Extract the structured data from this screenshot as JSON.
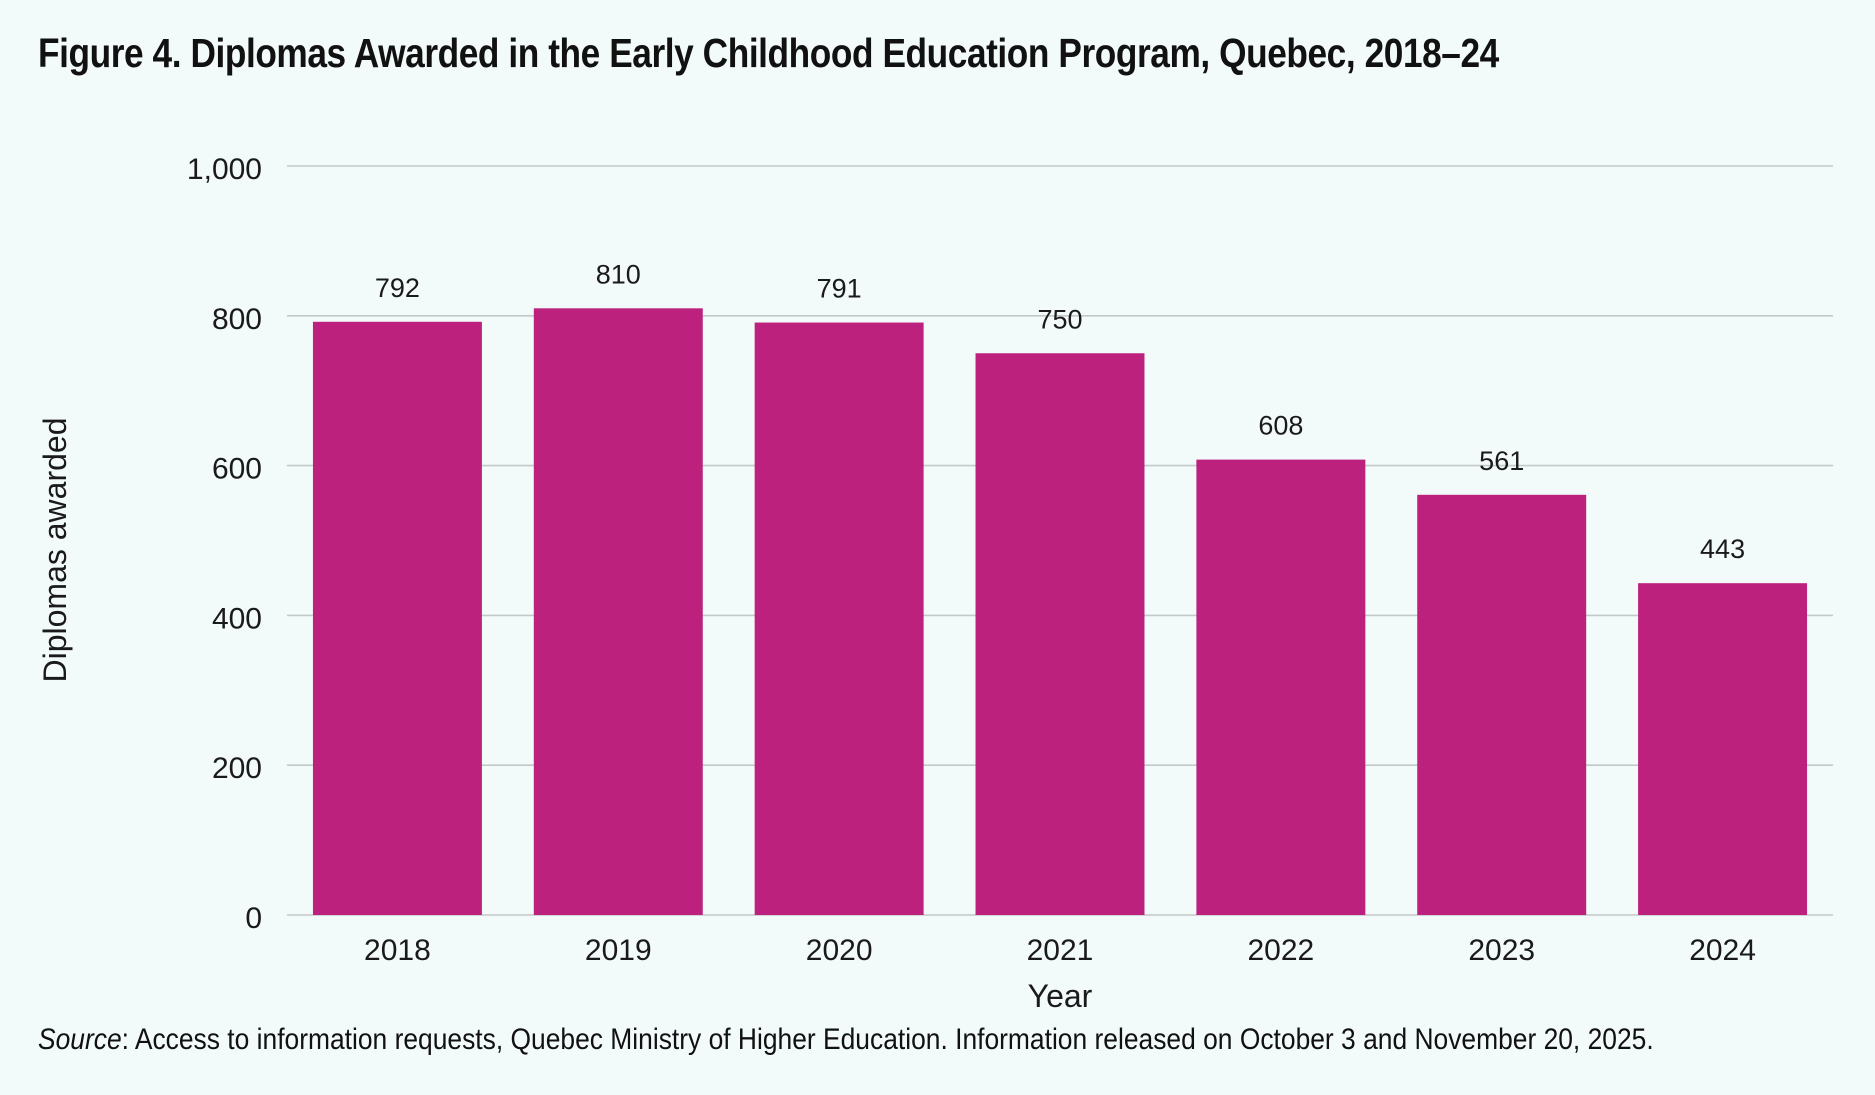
{
  "title": "Figure 4. Diplomas Awarded in the Early Childhood Education Program, Quebec, 2018–24",
  "source": {
    "label": "Source",
    "text": ": Access to information requests, Quebec Ministry of Higher Education. Information released on October 3 and November 20, 2025."
  },
  "colors": {
    "bar": "#bc217e",
    "grid": "#c3c8c8",
    "background": "#f3fafa"
  },
  "chart_data": {
    "type": "bar",
    "title": "Figure 4. Diplomas Awarded in the Early Childhood Education Program, Quebec, 2018–24",
    "xlabel": "Year",
    "ylabel": "Diplomas awarded",
    "categories": [
      "2018",
      "2019",
      "2020",
      "2021",
      "2022",
      "2023",
      "2024"
    ],
    "values": [
      792,
      810,
      791,
      750,
      608,
      561,
      443
    ],
    "data_labels": [
      "792",
      "810",
      "791",
      "750",
      "608",
      "561",
      "443"
    ],
    "ylim": [
      0,
      1000
    ],
    "yticks": [
      0,
      200,
      400,
      600,
      800,
      1000
    ],
    "ytick_labels": [
      "0",
      "200",
      "400",
      "600",
      "800",
      "1,000"
    ],
    "grid": true,
    "legend": "none"
  }
}
